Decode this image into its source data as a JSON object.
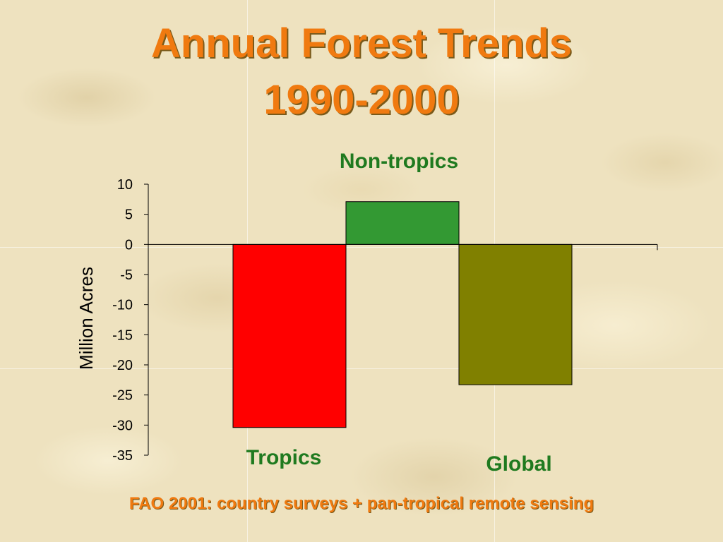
{
  "title": {
    "line1": "Annual Forest Trends",
    "line2": "1990-2000"
  },
  "source": "FAO 2001: country surveys + pan-tropical remote sensing",
  "colors": {
    "title": "#f07a10",
    "label": "#1f7a1f",
    "tropics": "#ff0000",
    "nontropics": "#339933",
    "global": "#808000"
  },
  "chart_data": {
    "type": "bar",
    "categories": [
      "Tropics",
      "Non-tropics",
      "Global"
    ],
    "values": [
      -30.4,
      7.1,
      -23.3
    ],
    "ylabel": "Million Acres",
    "xlabel": "",
    "ylim": [
      -35,
      10
    ],
    "yticks": [
      "10",
      "5",
      "0",
      "-5",
      "-10",
      "-15",
      "-20",
      "-25",
      "-30",
      "-35"
    ],
    "bar_colors": [
      "#ff0000",
      "#339933",
      "#808000"
    ],
    "grid": false,
    "legend": "none"
  }
}
